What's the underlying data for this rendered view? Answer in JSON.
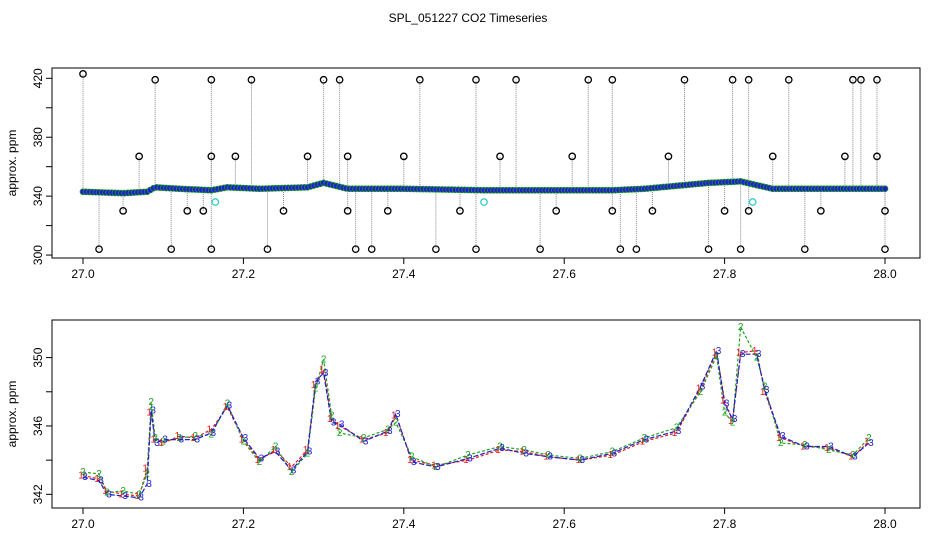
{
  "title": "SPL_051227  CO2 Timeseries",
  "colors": {
    "series1": "#e41a1c",
    "series2": "#1fa21f",
    "series3": "#1f1fcc",
    "outlier": "#000000",
    "flag": "#33cccc",
    "vlines": "#888888"
  },
  "chart_data": [
    {
      "type": "scatter",
      "title": "",
      "xlabel": "",
      "ylabel": "approx. ppm",
      "xlim": [
        27.0,
        28.0
      ],
      "ylim": [
        298,
        427
      ],
      "xticks": [
        {
          "v": 27.0,
          "label": "27.0"
        },
        {
          "v": 27.2,
          "label": "27.2"
        },
        {
          "v": 27.4,
          "label": "27.4"
        },
        {
          "v": 27.6,
          "label": "27.6"
        },
        {
          "v": 27.8,
          "label": "27.8"
        },
        {
          "v": 28.0,
          "label": "28.0"
        }
      ],
      "yticks": [
        {
          "v": 300,
          "label": "300"
        },
        {
          "v": 340,
          "label": "340"
        },
        {
          "v": 380,
          "label": "380"
        },
        {
          "v": 420,
          "label": "420"
        }
      ],
      "minor_yticks": [
        320,
        360,
        400
      ],
      "baseline": [
        [
          27.0,
          343
        ],
        [
          27.05,
          342
        ],
        [
          27.08,
          343
        ],
        [
          27.09,
          346
        ],
        [
          27.12,
          345
        ],
        [
          27.16,
          344
        ],
        [
          27.18,
          346
        ],
        [
          27.22,
          345
        ],
        [
          27.28,
          346
        ],
        [
          27.3,
          349
        ],
        [
          27.33,
          345
        ],
        [
          27.4,
          345
        ],
        [
          27.5,
          344
        ],
        [
          27.6,
          344
        ],
        [
          27.66,
          344
        ],
        [
          27.7,
          345
        ],
        [
          27.78,
          349
        ],
        [
          27.82,
          350
        ],
        [
          27.86,
          345
        ],
        [
          27.98,
          345
        ]
      ],
      "outliers": [
        [
          27.0,
          423
        ],
        [
          27.02,
          304
        ],
        [
          27.05,
          330
        ],
        [
          27.07,
          367
        ],
        [
          27.09,
          419
        ],
        [
          27.11,
          304
        ],
        [
          27.13,
          330
        ],
        [
          27.15,
          330
        ],
        [
          27.16,
          304
        ],
        [
          27.16,
          367
        ],
        [
          27.16,
          419
        ],
        [
          27.19,
          367
        ],
        [
          27.21,
          419
        ],
        [
          27.23,
          304
        ],
        [
          27.25,
          330
        ],
        [
          27.28,
          367
        ],
        [
          27.3,
          419
        ],
        [
          27.32,
          419
        ],
        [
          27.33,
          367
        ],
        [
          27.33,
          330
        ],
        [
          27.34,
          304
        ],
        [
          27.36,
          304
        ],
        [
          27.38,
          330
        ],
        [
          27.4,
          367
        ],
        [
          27.42,
          419
        ],
        [
          27.44,
          304
        ],
        [
          27.47,
          330
        ],
        [
          27.49,
          419
        ],
        [
          27.49,
          304
        ],
        [
          27.52,
          367
        ],
        [
          27.54,
          419
        ],
        [
          27.57,
          304
        ],
        [
          27.59,
          330
        ],
        [
          27.61,
          367
        ],
        [
          27.63,
          419
        ],
        [
          27.66,
          419
        ],
        [
          27.66,
          330
        ],
        [
          27.67,
          304
        ],
        [
          27.69,
          304
        ],
        [
          27.71,
          330
        ],
        [
          27.73,
          367
        ],
        [
          27.75,
          419
        ],
        [
          27.78,
          304
        ],
        [
          27.8,
          330
        ],
        [
          27.81,
          419
        ],
        [
          27.82,
          304
        ],
        [
          27.83,
          419
        ],
        [
          27.83,
          330
        ],
        [
          27.86,
          367
        ],
        [
          27.88,
          419
        ],
        [
          27.9,
          304
        ],
        [
          27.92,
          330
        ],
        [
          27.95,
          367
        ],
        [
          27.96,
          419
        ],
        [
          27.97,
          419
        ],
        [
          27.99,
          419
        ],
        [
          27.99,
          367
        ],
        [
          28.0,
          330
        ],
        [
          28.0,
          304
        ]
      ],
      "flags": [
        [
          27.165,
          336
        ],
        [
          27.5,
          336
        ],
        [
          27.835,
          336
        ]
      ]
    },
    {
      "type": "line",
      "title": "",
      "xlabel": "",
      "ylabel": "approx. ppm",
      "xlim": [
        27.0,
        28.0
      ],
      "ylim": [
        341.2,
        352.2
      ],
      "xticks": [
        {
          "v": 27.0,
          "label": "27.0"
        },
        {
          "v": 27.2,
          "label": "27.2"
        },
        {
          "v": 27.4,
          "label": "27.4"
        },
        {
          "v": 27.6,
          "label": "27.6"
        },
        {
          "v": 27.8,
          "label": "27.8"
        },
        {
          "v": 28.0,
          "label": "28.0"
        }
      ],
      "yticks": [
        {
          "v": 342,
          "label": "342"
        },
        {
          "v": 346,
          "label": "346"
        },
        {
          "v": 350,
          "label": "350"
        }
      ],
      "minor_yticks": [
        344,
        348
      ],
      "series": [
        {
          "label": "1",
          "values": [
            [
              27.0,
              343.1
            ],
            [
              27.02,
              342.9
            ],
            [
              27.03,
              342.2
            ],
            [
              27.05,
              342.0
            ],
            [
              27.07,
              341.9
            ],
            [
              27.08,
              343.5
            ],
            [
              27.085,
              346.8
            ],
            [
              27.09,
              345.2
            ],
            [
              27.1,
              345.0
            ],
            [
              27.12,
              345.4
            ],
            [
              27.14,
              345.3
            ],
            [
              27.16,
              345.8
            ],
            [
              27.18,
              347.1
            ],
            [
              27.2,
              345.2
            ],
            [
              27.22,
              344.0
            ],
            [
              27.24,
              344.6
            ],
            [
              27.26,
              343.6
            ],
            [
              27.28,
              344.6
            ],
            [
              27.29,
              348.4
            ],
            [
              27.3,
              349.3
            ],
            [
              27.31,
              346.4
            ],
            [
              27.32,
              346.0
            ],
            [
              27.35,
              345.2
            ],
            [
              27.38,
              345.6
            ],
            [
              27.39,
              346.6
            ],
            [
              27.41,
              344.0
            ],
            [
              27.44,
              343.7
            ],
            [
              27.48,
              344.0
            ],
            [
              27.52,
              344.6
            ],
            [
              27.55,
              344.5
            ],
            [
              27.58,
              344.2
            ],
            [
              27.62,
              344.0
            ],
            [
              27.66,
              344.3
            ],
            [
              27.7,
              345.1
            ],
            [
              27.74,
              345.6
            ],
            [
              27.77,
              348.2
            ],
            [
              27.79,
              350.3
            ],
            [
              27.8,
              347.5
            ],
            [
              27.81,
              346.3
            ],
            [
              27.82,
              350.3
            ],
            [
              27.84,
              350.4
            ],
            [
              27.85,
              348.0
            ],
            [
              27.87,
              345.3
            ],
            [
              27.9,
              344.8
            ],
            [
              27.93,
              344.7
            ],
            [
              27.96,
              344.2
            ],
            [
              27.98,
              345.1
            ]
          ]
        },
        {
          "label": "2",
          "values": [
            [
              27.0,
              343.3
            ],
            [
              27.02,
              343.2
            ],
            [
              27.03,
              342.1
            ],
            [
              27.05,
              342.2
            ],
            [
              27.07,
              342.0
            ],
            [
              27.08,
              343.2
            ],
            [
              27.085,
              347.4
            ],
            [
              27.09,
              345.3
            ],
            [
              27.1,
              345.1
            ],
            [
              27.12,
              345.3
            ],
            [
              27.14,
              345.4
            ],
            [
              27.16,
              345.5
            ],
            [
              27.18,
              347.3
            ],
            [
              27.2,
              345.1
            ],
            [
              27.22,
              343.9
            ],
            [
              27.24,
              344.8
            ],
            [
              27.26,
              343.3
            ],
            [
              27.28,
              344.4
            ],
            [
              27.29,
              348.2
            ],
            [
              27.3,
              349.9
            ],
            [
              27.31,
              346.6
            ],
            [
              27.32,
              345.6
            ],
            [
              27.35,
              345.3
            ],
            [
              27.38,
              345.8
            ],
            [
              27.39,
              346.2
            ],
            [
              27.41,
              344.2
            ],
            [
              27.44,
              343.6
            ],
            [
              27.48,
              344.3
            ],
            [
              27.52,
              344.8
            ],
            [
              27.55,
              344.6
            ],
            [
              27.58,
              344.3
            ],
            [
              27.62,
              344.1
            ],
            [
              27.66,
              344.5
            ],
            [
              27.7,
              345.3
            ],
            [
              27.74,
              345.9
            ],
            [
              27.77,
              348.0
            ],
            [
              27.79,
              350.1
            ],
            [
              27.8,
              346.8
            ],
            [
              27.81,
              346.2
            ],
            [
              27.82,
              351.8
            ],
            [
              27.84,
              350.0
            ],
            [
              27.85,
              348.3
            ],
            [
              27.87,
              345.0
            ],
            [
              27.9,
              344.9
            ],
            [
              27.93,
              344.6
            ],
            [
              27.96,
              344.3
            ],
            [
              27.98,
              345.3
            ]
          ]
        },
        {
          "label": "3",
          "values": [
            [
              27.0,
              343.0
            ],
            [
              27.02,
              342.8
            ],
            [
              27.03,
              342.0
            ],
            [
              27.05,
              341.9
            ],
            [
              27.07,
              341.8
            ],
            [
              27.08,
              342.6
            ],
            [
              27.085,
              346.9
            ],
            [
              27.09,
              345.0
            ],
            [
              27.1,
              345.2
            ],
            [
              27.12,
              345.2
            ],
            [
              27.14,
              345.2
            ],
            [
              27.16,
              345.6
            ],
            [
              27.18,
              347.2
            ],
            [
              27.2,
              345.3
            ],
            [
              27.22,
              344.1
            ],
            [
              27.24,
              344.5
            ],
            [
              27.26,
              343.4
            ],
            [
              27.28,
              344.5
            ],
            [
              27.29,
              348.6
            ],
            [
              27.3,
              349.1
            ],
            [
              27.31,
              346.2
            ],
            [
              27.32,
              346.1
            ],
            [
              27.35,
              345.1
            ],
            [
              27.38,
              345.7
            ],
            [
              27.39,
              346.7
            ],
            [
              27.41,
              343.9
            ],
            [
              27.44,
              343.6
            ],
            [
              27.48,
              344.1
            ],
            [
              27.52,
              344.7
            ],
            [
              27.55,
              344.4
            ],
            [
              27.58,
              344.2
            ],
            [
              27.62,
              344.0
            ],
            [
              27.66,
              344.4
            ],
            [
              27.7,
              345.2
            ],
            [
              27.74,
              345.7
            ],
            [
              27.77,
              348.3
            ],
            [
              27.79,
              350.4
            ],
            [
              27.8,
              347.3
            ],
            [
              27.81,
              346.4
            ],
            [
              27.82,
              350.2
            ],
            [
              27.84,
              350.2
            ],
            [
              27.85,
              348.1
            ],
            [
              27.87,
              345.4
            ],
            [
              27.9,
              344.8
            ],
            [
              27.93,
              344.8
            ],
            [
              27.96,
              344.2
            ],
            [
              27.98,
              345.0
            ]
          ]
        }
      ]
    }
  ]
}
